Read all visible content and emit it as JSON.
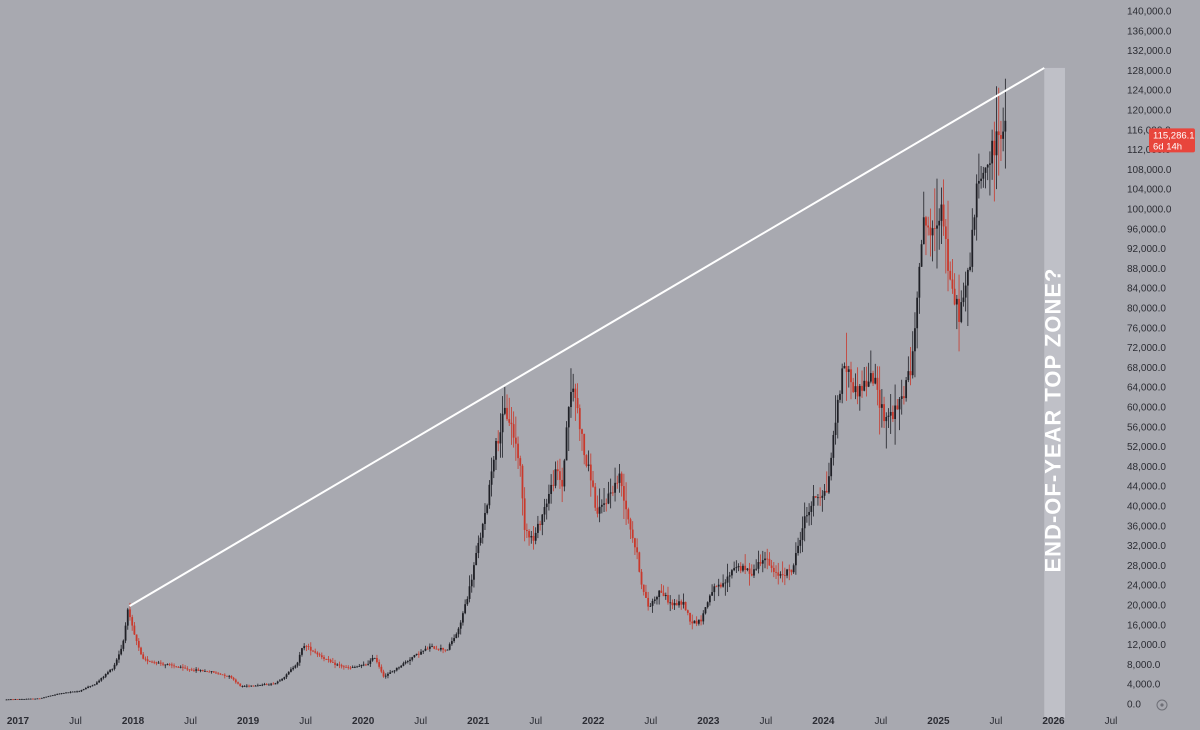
{
  "chart_data": {
    "type": "candlestick",
    "title": "",
    "xlabel": "",
    "ylabel": "",
    "ylim": [
      0,
      140000
    ],
    "grid": false,
    "y_ticks": [
      0,
      4000,
      8000,
      12000,
      16000,
      20000,
      24000,
      28000,
      32000,
      36000,
      40000,
      44000,
      48000,
      52000,
      56000,
      60000,
      64000,
      68000,
      72000,
      76000,
      80000,
      84000,
      88000,
      92000,
      96000,
      100000,
      104000,
      108000,
      112000,
      116000,
      120000,
      124000,
      128000,
      132000,
      136000,
      140000
    ],
    "y_tick_labels": [
      "0.0",
      "4,000.0",
      "8,000.0",
      "12,000.0",
      "16,000.0",
      "20,000.0",
      "24,000.0",
      "28,000.0",
      "32,000.0",
      "36,000.0",
      "40,000.0",
      "44,000.0",
      "48,000.0",
      "52,000.0",
      "56,000.0",
      "60,000.0",
      "64,000.0",
      "68,000.0",
      "72,000.0",
      "76,000.0",
      "80,000.0",
      "84,000.0",
      "88,000.0",
      "92,000.0",
      "96,000.0",
      "100,000.0",
      "104,000.0",
      "108,000.0",
      "112,000.0",
      "116,000.0",
      "120,000.0",
      "124,000.0",
      "128,000.0",
      "132,000.0",
      "136,000.0",
      "140,000.0"
    ],
    "x_ticks": [
      {
        "label": "2017",
        "t": 2017.0,
        "major": true
      },
      {
        "label": "Jul",
        "t": 2017.5,
        "major": false
      },
      {
        "label": "2018",
        "t": 2018.0,
        "major": true
      },
      {
        "label": "Jul",
        "t": 2018.5,
        "major": false
      },
      {
        "label": "2019",
        "t": 2019.0,
        "major": true
      },
      {
        "label": "Jul",
        "t": 2019.5,
        "major": false
      },
      {
        "label": "2020",
        "t": 2020.0,
        "major": true
      },
      {
        "label": "Jul",
        "t": 2020.5,
        "major": false
      },
      {
        "label": "2021",
        "t": 2021.0,
        "major": true
      },
      {
        "label": "Jul",
        "t": 2021.5,
        "major": false
      },
      {
        "label": "2022",
        "t": 2022.0,
        "major": true
      },
      {
        "label": "Jul",
        "t": 2022.5,
        "major": false
      },
      {
        "label": "2023",
        "t": 2023.0,
        "major": true
      },
      {
        "label": "Jul",
        "t": 2023.5,
        "major": false
      },
      {
        "label": "2024",
        "t": 2024.0,
        "major": true
      },
      {
        "label": "Jul",
        "t": 2024.5,
        "major": false
      },
      {
        "label": "2025",
        "t": 2025.0,
        "major": true
      },
      {
        "label": "Jul",
        "t": 2025.5,
        "major": false
      },
      {
        "label": "2026",
        "t": 2026.0,
        "major": true
      },
      {
        "label": "Jul",
        "t": 2026.5,
        "major": false
      }
    ],
    "price_path": [
      [
        2016.9,
        900
      ],
      [
        2017.2,
        1100
      ],
      [
        2017.4,
        2200
      ],
      [
        2017.55,
        2600
      ],
      [
        2017.7,
        4200
      ],
      [
        2017.85,
        7500
      ],
      [
        2017.93,
        12000
      ],
      [
        2017.97,
        19000
      ],
      [
        2018.03,
        14000
      ],
      [
        2018.1,
        9000
      ],
      [
        2018.3,
        8000
      ],
      [
        2018.5,
        7000
      ],
      [
        2018.7,
        6500
      ],
      [
        2018.87,
        5500
      ],
      [
        2018.95,
        3600
      ],
      [
        2019.1,
        3800
      ],
      [
        2019.25,
        4100
      ],
      [
        2019.35,
        5800
      ],
      [
        2019.45,
        8500
      ],
      [
        2019.5,
        12000
      ],
      [
        2019.6,
        10500
      ],
      [
        2019.75,
        8200
      ],
      [
        2019.9,
        7200
      ],
      [
        2020.05,
        8000
      ],
      [
        2020.12,
        9500
      ],
      [
        2020.2,
        5500
      ],
      [
        2020.3,
        7000
      ],
      [
        2020.45,
        9500
      ],
      [
        2020.6,
        11500
      ],
      [
        2020.75,
        11000
      ],
      [
        2020.85,
        15000
      ],
      [
        2020.95,
        24000
      ],
      [
        2021.0,
        30000
      ],
      [
        2021.08,
        38000
      ],
      [
        2021.15,
        50000
      ],
      [
        2021.25,
        59000
      ],
      [
        2021.3,
        57000
      ],
      [
        2021.38,
        49000
      ],
      [
        2021.42,
        36000
      ],
      [
        2021.5,
        33000
      ],
      [
        2021.6,
        40000
      ],
      [
        2021.7,
        47000
      ],
      [
        2021.75,
        44000
      ],
      [
        2021.8,
        60000
      ],
      [
        2021.85,
        64000
      ],
      [
        2021.9,
        57000
      ],
      [
        2021.95,
        49000
      ],
      [
        2022.0,
        46000
      ],
      [
        2022.05,
        38000
      ],
      [
        2022.15,
        42000
      ],
      [
        2022.25,
        46000
      ],
      [
        2022.32,
        38000
      ],
      [
        2022.4,
        30000
      ],
      [
        2022.45,
        23000
      ],
      [
        2022.5,
        19500
      ],
      [
        2022.6,
        23000
      ],
      [
        2022.7,
        20000
      ],
      [
        2022.8,
        20500
      ],
      [
        2022.87,
        16500
      ],
      [
        2022.95,
        16700
      ],
      [
        2023.05,
        23000
      ],
      [
        2023.15,
        24000
      ],
      [
        2023.25,
        28000
      ],
      [
        2023.4,
        26500
      ],
      [
        2023.5,
        30000
      ],
      [
        2023.6,
        26000
      ],
      [
        2023.75,
        27000
      ],
      [
        2023.85,
        37000
      ],
      [
        2023.95,
        42000
      ],
      [
        2024.05,
        43000
      ],
      [
        2024.15,
        62000
      ],
      [
        2024.2,
        69000
      ],
      [
        2024.3,
        63000
      ],
      [
        2024.45,
        66000
      ],
      [
        2024.55,
        58000
      ],
      [
        2024.65,
        59000
      ],
      [
        2024.72,
        63000
      ],
      [
        2024.8,
        70000
      ],
      [
        2024.85,
        90000
      ],
      [
        2024.9,
        98000
      ],
      [
        2024.97,
        94000
      ],
      [
        2025.05,
        102000
      ],
      [
        2025.12,
        84000
      ],
      [
        2025.2,
        79000
      ],
      [
        2025.27,
        85000
      ],
      [
        2025.35,
        103000
      ],
      [
        2025.42,
        108000
      ],
      [
        2025.5,
        112000
      ],
      [
        2025.55,
        117000
      ],
      [
        2025.6,
        115286
      ]
    ],
    "trendline": {
      "from": {
        "t": 2017.97,
        "y": 19800
      },
      "to": {
        "t": 2025.92,
        "y": 128500
      }
    },
    "highlight_zone": {
      "t_start": 2025.92,
      "t_end": 2026.1,
      "label": "END-OF-YEAR  TOP  ZONE?"
    },
    "last_price": {
      "value": 115286.1,
      "label": "115,286.1",
      "countdown": "6d 14h"
    },
    "colors": {
      "background": "#a8a9b0",
      "up": "#1f2026",
      "down": "#c9392c",
      "trendline": "#ffffff",
      "zone": "#c3c4cb",
      "tag": "#e8453c",
      "axis_text": "#2b2c33"
    }
  }
}
